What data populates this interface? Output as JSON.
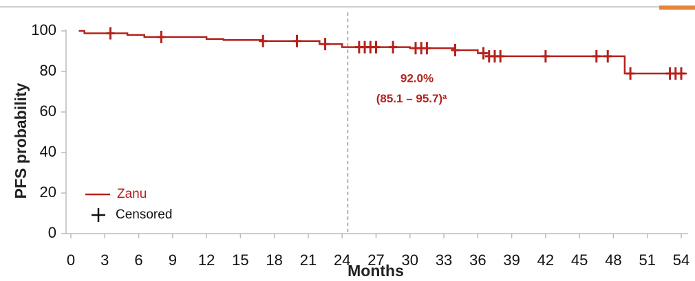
{
  "chart_data": {
    "type": "line",
    "step": "post",
    "y_label": "PFS probability",
    "x_label": "Months",
    "xlim": [
      0,
      54
    ],
    "xticks": [
      0,
      3,
      6,
      9,
      12,
      15,
      18,
      21,
      24,
      27,
      30,
      33,
      36,
      39,
      42,
      45,
      48,
      51,
      54
    ],
    "ylim": [
      0,
      100
    ],
    "yticks": [
      0,
      20,
      40,
      60,
      80,
      100
    ],
    "reference_line_x": 24.5,
    "annotation": {
      "value": 92.0,
      "label": "92.0%",
      "ci": "(85.1 – 95.7)",
      "note": "a"
    },
    "series": [
      {
        "name": "Zanu",
        "color": "#b5211c",
        "x": [
          0.7,
          1.2,
          5,
          6.5,
          12,
          13.5,
          17,
          22,
          24,
          30,
          34,
          36,
          37,
          49,
          54.5
        ],
        "values": [
          100,
          98.8,
          98,
          97,
          96,
          95.5,
          95,
          93.5,
          92,
          91.5,
          90.5,
          89,
          87.5,
          79,
          79
        ]
      },
      {
        "name": "Censored",
        "color": "#b5211c",
        "x": [
          3.5,
          8,
          17,
          20,
          22.5,
          25.5,
          26,
          26.5,
          27,
          28.5,
          30.5,
          31,
          31.5,
          34,
          36.5,
          37,
          37.5,
          38,
          42,
          46.5,
          47.5,
          49.5,
          53,
          53.5,
          54
        ],
        "values": [
          98.8,
          97,
          95,
          95,
          93.5,
          92,
          92,
          92,
          92,
          92,
          91.5,
          91.5,
          91.5,
          90.5,
          89,
          87.5,
          87.5,
          87.5,
          87.5,
          87.5,
          87.5,
          79,
          79,
          79,
          79
        ]
      }
    ]
  }
}
